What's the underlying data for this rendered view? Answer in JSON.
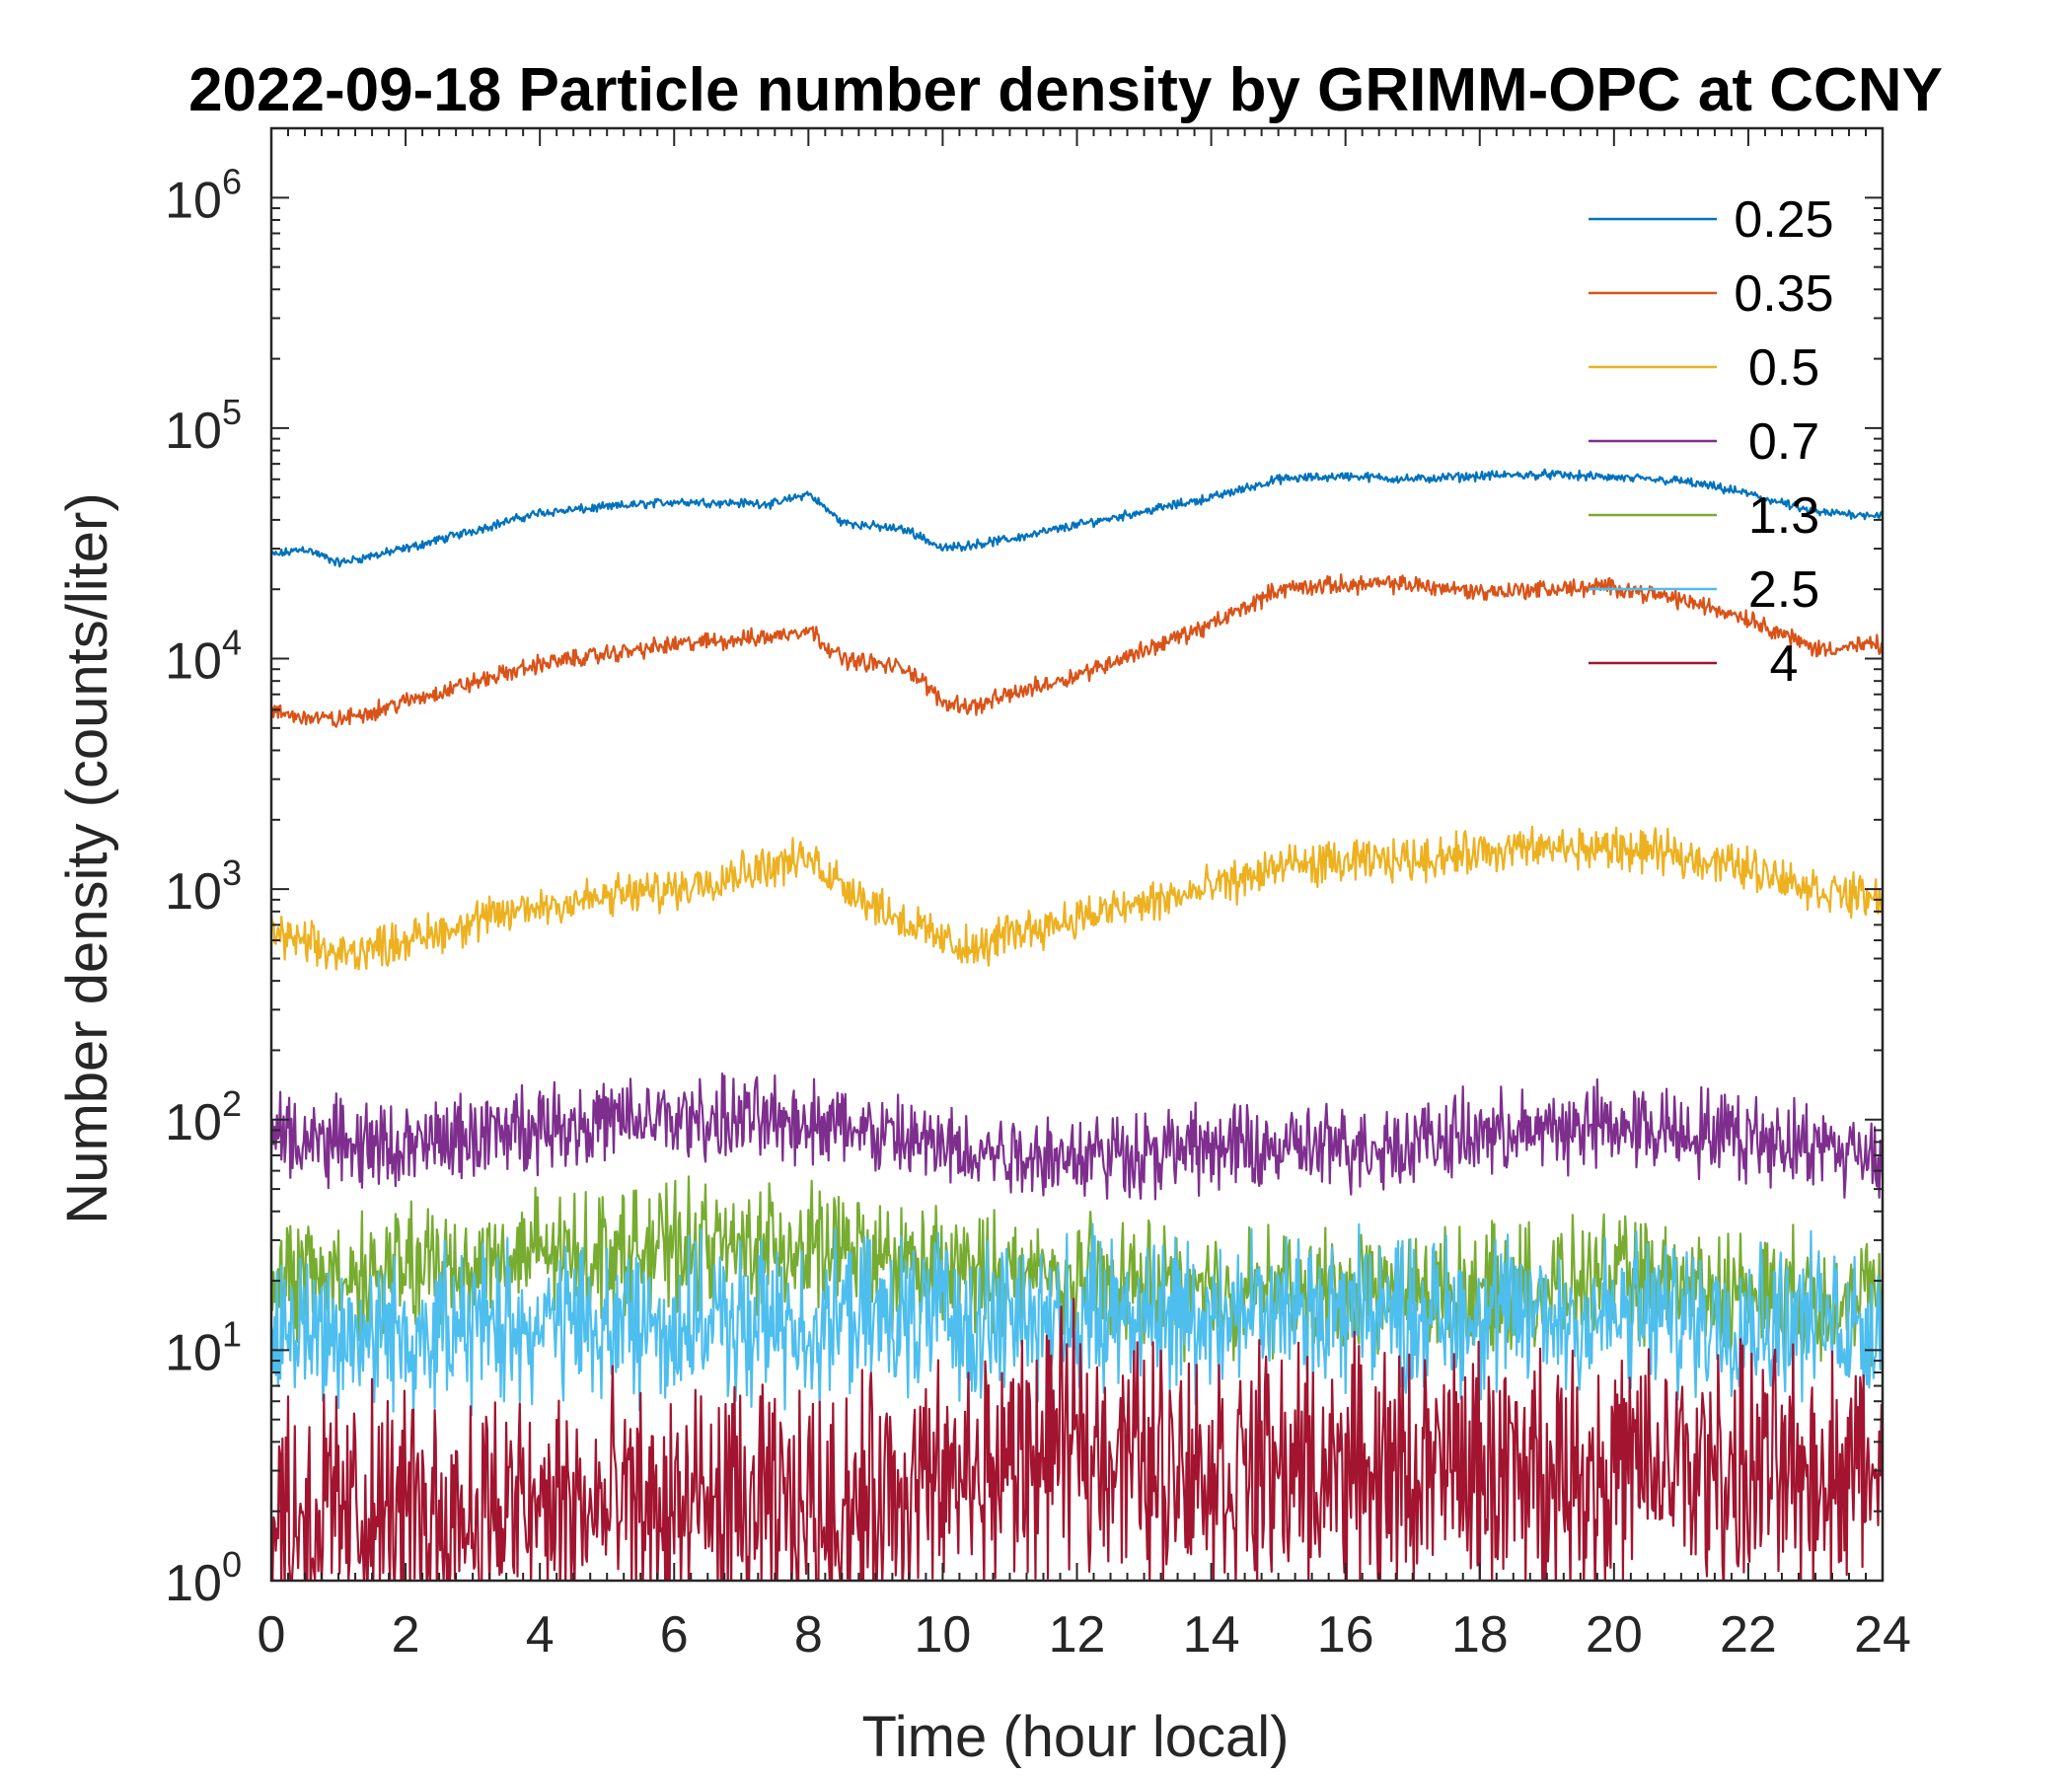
{
  "chart_data": {
    "type": "line",
    "title": "2022-09-18 Particle number density by GRIMM-OPC at CCNY",
    "xlabel": "Time (hour local)",
    "ylabel": "Number density (counts/liter)",
    "xlim": [
      0,
      24
    ],
    "ylim": [
      1,
      2000000
    ],
    "yscale": "log",
    "x_ticks": [
      "0",
      "2",
      "4",
      "6",
      "8",
      "10",
      "12",
      "14",
      "16",
      "18",
      "20",
      "22",
      "24"
    ],
    "y_tick_base": "10",
    "y_tick_exponents": [
      "0",
      "1",
      "2",
      "3",
      "4",
      "5",
      "6"
    ],
    "legend_location": "top-right",
    "series": [
      {
        "name": "0.25",
        "color": "#0072BD",
        "noise": 0.015,
        "x": [
          0,
          0.5,
          1,
          2,
          4,
          6,
          7.5,
          8,
          8.5,
          9.5,
          10,
          11,
          12,
          14,
          15,
          16,
          17,
          18,
          19,
          20,
          21,
          22,
          23,
          24
        ],
        "y": [
          28000,
          30000,
          26000,
          30000,
          43000,
          48000,
          47000,
          52000,
          39000,
          36000,
          30000,
          33000,
          38000,
          50000,
          60000,
          62000,
          60000,
          62000,
          63000,
          61000,
          59000,
          52000,
          43000,
          42000
        ]
      },
      {
        "name": "0.35",
        "color": "#D95319",
        "noise": 0.03,
        "x": [
          0,
          1,
          2,
          4,
          6,
          7.5,
          8,
          8.5,
          9.5,
          10,
          10.5,
          11,
          12,
          14,
          15,
          16,
          17,
          18,
          19,
          20,
          21,
          22,
          23,
          24
        ],
        "y": [
          5800,
          5400,
          6500,
          9500,
          11500,
          12500,
          13500,
          10000,
          9000,
          6500,
          6200,
          7000,
          8500,
          14000,
          20000,
          21000,
          21000,
          19500,
          20000,
          20500,
          18000,
          15000,
          11000,
          11500
        ]
      },
      {
        "name": "0.5",
        "color": "#EDB120",
        "noise": 0.07,
        "x": [
          0,
          1,
          2,
          4,
          6,
          7,
          8,
          9,
          10,
          10.5,
          11,
          12,
          14,
          15,
          16,
          17,
          18,
          19,
          20,
          21,
          22,
          23,
          24
        ],
        "y": [
          650,
          520,
          600,
          850,
          1000,
          1200,
          1350,
          850,
          600,
          540,
          650,
          750,
          1000,
          1250,
          1300,
          1350,
          1450,
          1500,
          1500,
          1400,
          1250,
          1000,
          900
        ]
      },
      {
        "name": "0.7",
        "color": "#7E2F8E",
        "noise": 0.14,
        "x": [
          0,
          2,
          4,
          6,
          8,
          10,
          12,
          14,
          16,
          18,
          20,
          22,
          24
        ],
        "y": [
          85,
          75,
          95,
          100,
          100,
          75,
          70,
          75,
          75,
          85,
          95,
          85,
          70
        ]
      },
      {
        "name": "1.3",
        "color": "#77AC30",
        "noise": 0.2,
        "x": [
          0,
          2,
          4,
          6,
          8,
          10,
          12,
          14,
          16,
          18,
          20,
          22,
          24
        ],
        "y": [
          20,
          22,
          26,
          28,
          28,
          22,
          20,
          18,
          18,
          18,
          20,
          18,
          16
        ]
      },
      {
        "name": "2.5",
        "color": "#4DBEEE",
        "noise": 0.26,
        "x": [
          0,
          2,
          4,
          6,
          8,
          10,
          12,
          14,
          16,
          18,
          20,
          22,
          24
        ],
        "y": [
          12,
          12,
          13,
          13,
          13,
          14,
          14,
          15,
          15,
          14,
          14,
          14,
          13
        ]
      },
      {
        "name": "4",
        "color": "#A2142F",
        "noise": 0.4,
        "x": [
          0,
          2,
          4,
          6,
          8,
          10,
          12,
          13,
          14,
          16,
          18,
          20,
          22,
          24
        ],
        "y": [
          2,
          2,
          2,
          2,
          2,
          2.5,
          4,
          3.5,
          3,
          3,
          3,
          3,
          3,
          3
        ]
      }
    ]
  }
}
